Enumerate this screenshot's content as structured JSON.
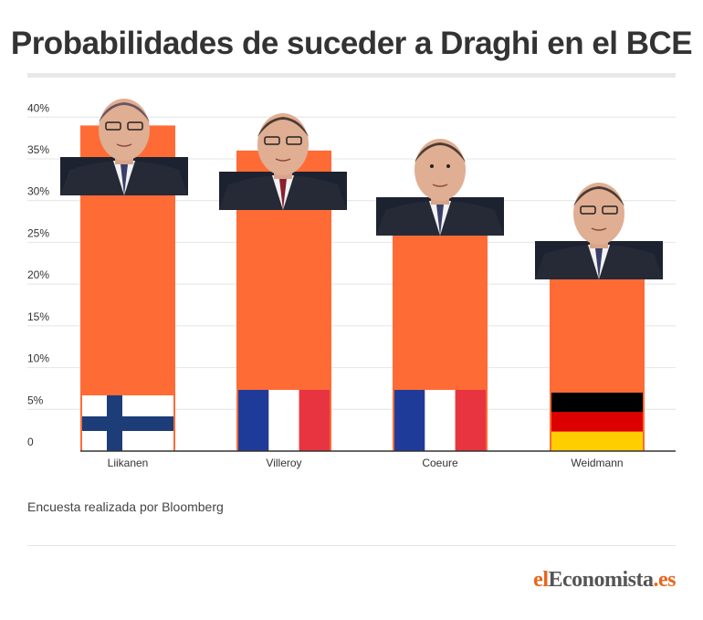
{
  "title": "Probabilidades de suceder a Draghi en el BCE",
  "source": "Encuesta realizada por Bloomberg",
  "brand": {
    "part1": "el",
    "part2": "Economista",
    "part3": ".es"
  },
  "colors": {
    "bar": "#ff6b35",
    "title": "#333333",
    "brand": "#e8661c"
  },
  "chart_data": {
    "type": "bar",
    "categories": [
      "Liikanen",
      "Villeroy",
      "Coeure",
      "Weidmann"
    ],
    "values": [
      39,
      36,
      30,
      25
    ],
    "ylim": [
      0,
      42
    ],
    "yticks": [
      0,
      5,
      10,
      15,
      20,
      25,
      30,
      35,
      40
    ],
    "ytick_labels": [
      "0",
      "5%",
      "10%",
      "15%",
      "20%",
      "25%",
      "30%",
      "35%",
      "40%"
    ],
    "grid": true,
    "flags": [
      "finland-flag",
      "france-flag",
      "france-flag",
      "germany-flag"
    ],
    "portraits": [
      "portrait-liikanen",
      "portrait-villeroy",
      "portrait-coeure",
      "portrait-weidmann"
    ]
  }
}
